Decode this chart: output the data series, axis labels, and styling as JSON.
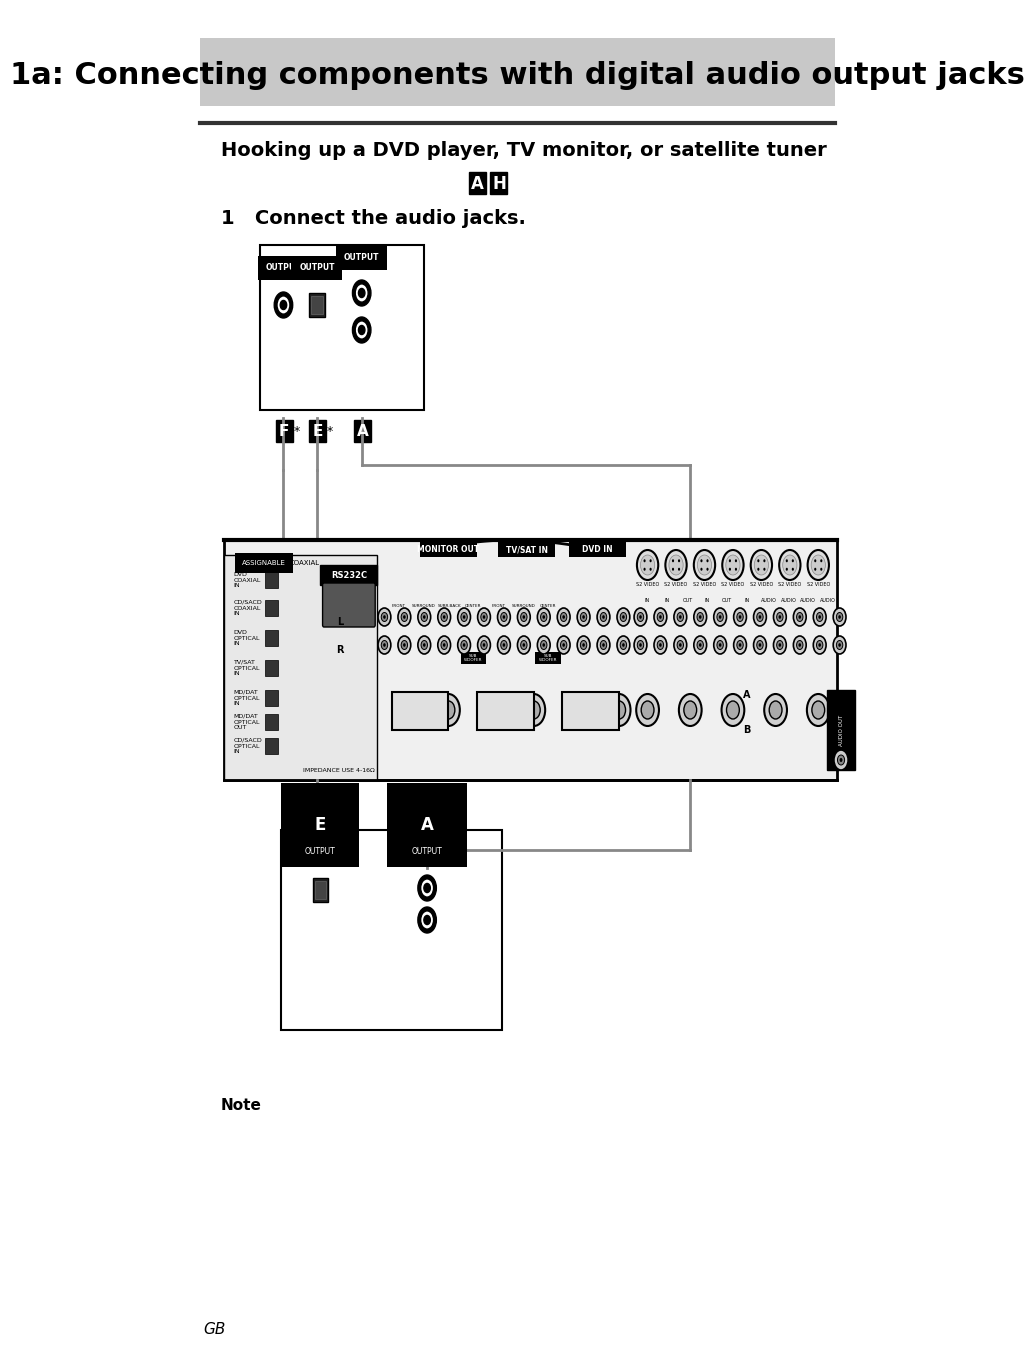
{
  "title": "1a: Connecting components with digital audio output jacks",
  "subtitle": "Hooking up a DVD player, TV monitor, or satellite tuner",
  "step": "1   Connect the audio jacks.",
  "note_label": "Note",
  "gb_label": "GB",
  "title_bg": "#c8c8c8",
  "title_color": "#000000",
  "page_bg": "#ffffff",
  "line_color": "#888888",
  "dark_line": "#333333"
}
